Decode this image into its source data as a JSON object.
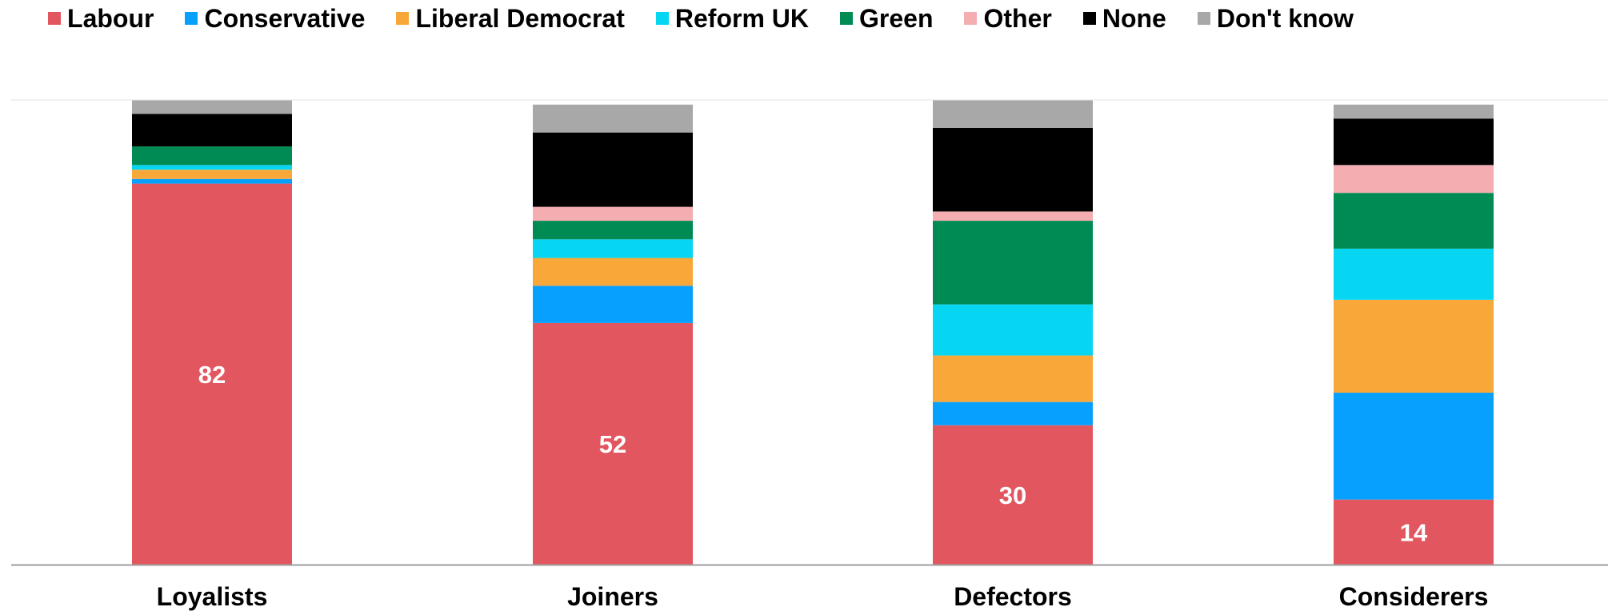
{
  "colors": {
    "Labour": "#e2575f",
    "Conservative": "#08a0ff",
    "Liberal Democrat": "#f8a838",
    "Reform UK": "#06d6f2",
    "Green": "#008b55",
    "Other": "#f4adb1",
    "None": "#000000",
    "Don't know": "#a8a8a8"
  },
  "chart_data": {
    "type": "bar",
    "stacked": true,
    "categories": [
      "Loyalists",
      "Joiners",
      "Defectors",
      "Considerers"
    ],
    "legend_position": "top",
    "grid": false,
    "ylim": [
      0,
      100
    ],
    "series": [
      {
        "name": "Labour",
        "values": [
          82,
          52,
          30,
          14
        ]
      },
      {
        "name": "Conservative",
        "values": [
          1,
          8,
          5,
          23
        ]
      },
      {
        "name": "Liberal Democrat",
        "values": [
          2,
          6,
          10,
          20
        ]
      },
      {
        "name": "Reform UK",
        "values": [
          1,
          4,
          11,
          11
        ]
      },
      {
        "name": "Green",
        "values": [
          4,
          4,
          18,
          12
        ]
      },
      {
        "name": "Other",
        "values": [
          0,
          3,
          2,
          6
        ]
      },
      {
        "name": "None",
        "values": [
          7,
          16,
          18,
          10
        ]
      },
      {
        "name": "Don't know",
        "values": [
          3,
          6,
          6,
          3
        ]
      }
    ],
    "data_labels": [
      {
        "series": "Labour",
        "category": "Loyalists",
        "text": "82"
      },
      {
        "series": "Labour",
        "category": "Joiners",
        "text": "52"
      },
      {
        "series": "Labour",
        "category": "Defectors",
        "text": "30"
      },
      {
        "series": "Labour",
        "category": "Considerers",
        "text": "14"
      }
    ]
  }
}
